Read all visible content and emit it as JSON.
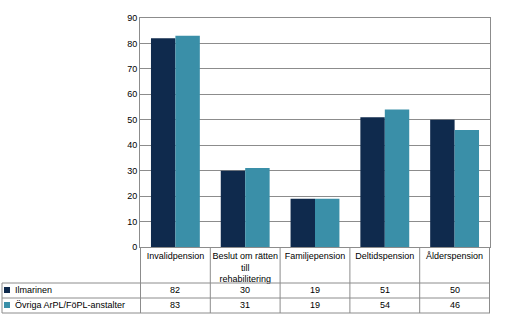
{
  "chart_data": {
    "type": "bar",
    "categories": [
      "Invalidpension",
      "Beslut om rätten till rehabilitering",
      "Familjepension",
      "Deltidspension",
      "Ålderspension"
    ],
    "series": [
      {
        "name": "Ilmarinen",
        "color": "#0f2a4d",
        "values": [
          82,
          30,
          19,
          51,
          50
        ]
      },
      {
        "name": "Övriga ArPL/FöPL-anstalter",
        "color": "#3a8fa8",
        "values": [
          83,
          31,
          19,
          54,
          46
        ]
      }
    ],
    "ylim": [
      0,
      90
    ],
    "yticks": [
      0,
      10,
      20,
      30,
      40,
      50,
      60,
      70,
      80,
      90
    ],
    "grid": true
  }
}
